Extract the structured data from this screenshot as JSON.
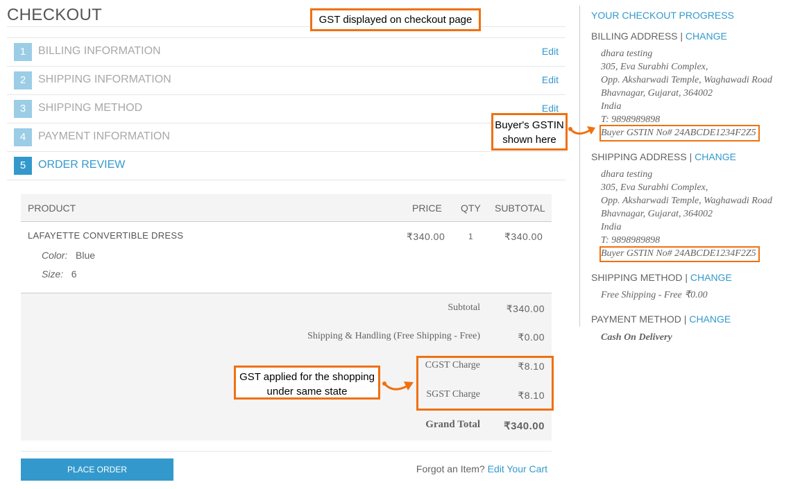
{
  "page": {
    "title": "CHECKOUT"
  },
  "steps": [
    {
      "num": "1",
      "label": "BILLING INFORMATION",
      "edit": "Edit"
    },
    {
      "num": "2",
      "label": "SHIPPING INFORMATION",
      "edit": "Edit"
    },
    {
      "num": "3",
      "label": "SHIPPING METHOD",
      "edit": "Edit"
    },
    {
      "num": "4",
      "label": "PAYMENT INFORMATION"
    },
    {
      "num": "5",
      "label": "ORDER REVIEW",
      "active": true
    }
  ],
  "table": {
    "headers": {
      "product": "PRODUCT",
      "price": "PRICE",
      "qty": "QTY",
      "subtotal": "SUBTOTAL"
    },
    "item": {
      "name": "LAFAYETTE CONVERTIBLE DRESS",
      "price": "₹340.00",
      "qty": "1",
      "subtotal": "₹340.00",
      "options": [
        {
          "label": "Color:",
          "value": "Blue"
        },
        {
          "label": "Size:",
          "value": "6"
        }
      ]
    }
  },
  "totals": [
    {
      "label": "Subtotal",
      "value": "₹340.00"
    },
    {
      "label": "Shipping & Handling (Free Shipping - Free)",
      "value": "₹0.00"
    },
    {
      "label": "CGST Charge",
      "value": "₹8.10"
    },
    {
      "label": "SGST Charge",
      "value": "₹8.10"
    },
    {
      "label": "Grand Total",
      "value": "₹340.00"
    }
  ],
  "actions": {
    "place_order": "PLACE ORDER",
    "forgot": "Forgot an Item?",
    "edit_cart": "Edit Your Cart"
  },
  "sidebar": {
    "title": "YOUR CHECKOUT PROGRESS",
    "change": "CHANGE",
    "billing": {
      "heading": "BILLING ADDRESS",
      "lines": [
        "dhara testing",
        "305, Eva Surabhi Complex,",
        "Opp. Aksharwadi Temple, Waghawadi Road",
        "Bhavnagar, Gujarat, 364002",
        "India",
        "T: 9898989898",
        "Buyer GSTIN No# 24ABCDE1234F2Z5"
      ]
    },
    "shipping": {
      "heading": "SHIPPING ADDRESS",
      "lines": [
        "dhara testing",
        "305, Eva Surabhi Complex,",
        "Opp. Aksharwadi Temple, Waghawadi Road",
        "Bhavnagar, Gujarat, 364002",
        "India",
        "T: 9898989898",
        "Buyer GSTIN No# 24ABCDE1234F2Z5"
      ]
    },
    "shipping_method": {
      "heading": "SHIPPING METHOD",
      "value": "Free Shipping - Free ₹0.00"
    },
    "payment_method": {
      "heading": "PAYMENT METHOD",
      "value": "Cash On Delivery"
    }
  },
  "annotations": {
    "top": "GST displayed on checkout page",
    "gstin": "Buyer's GSTIN shown here",
    "gst": "GST applied for the shopping under same state"
  },
  "colors": {
    "accent": "#3399cc",
    "annotation": "#f07010"
  }
}
